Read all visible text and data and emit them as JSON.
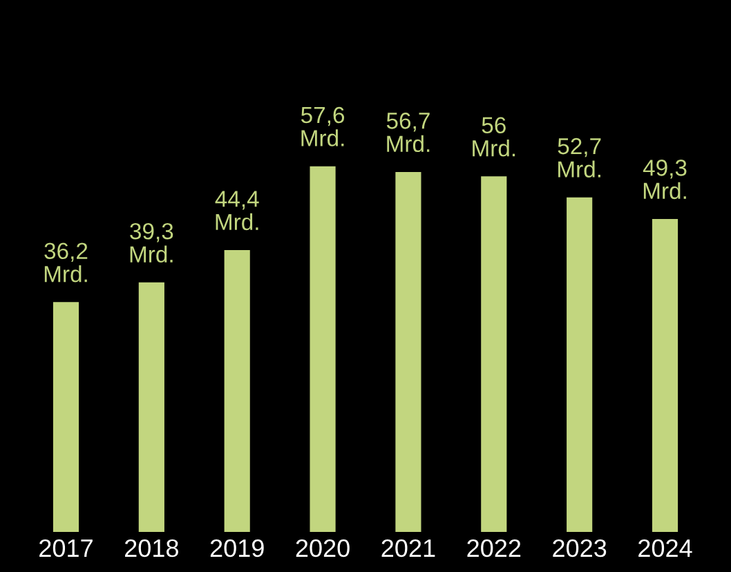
{
  "chart_data": {
    "type": "bar",
    "categories": [
      "2017",
      "2018",
      "2019",
      "2020",
      "2021",
      "2022",
      "2023",
      "2024"
    ],
    "values": [
      36.2,
      39.3,
      44.4,
      57.6,
      56.7,
      56,
      52.7,
      49.3
    ],
    "value_labels": [
      "36,2\nMrd.",
      "39,3\nMrd.",
      "44,4\nMrd.",
      "57,6\nMrd.",
      "56,7\nMrd.",
      "56\nMrd.",
      "52,7\nMrd.",
      "49,3\nMrd."
    ],
    "color": "#c2d67f",
    "grid": false,
    "legend": false,
    "tick_labels": "x"
  }
}
